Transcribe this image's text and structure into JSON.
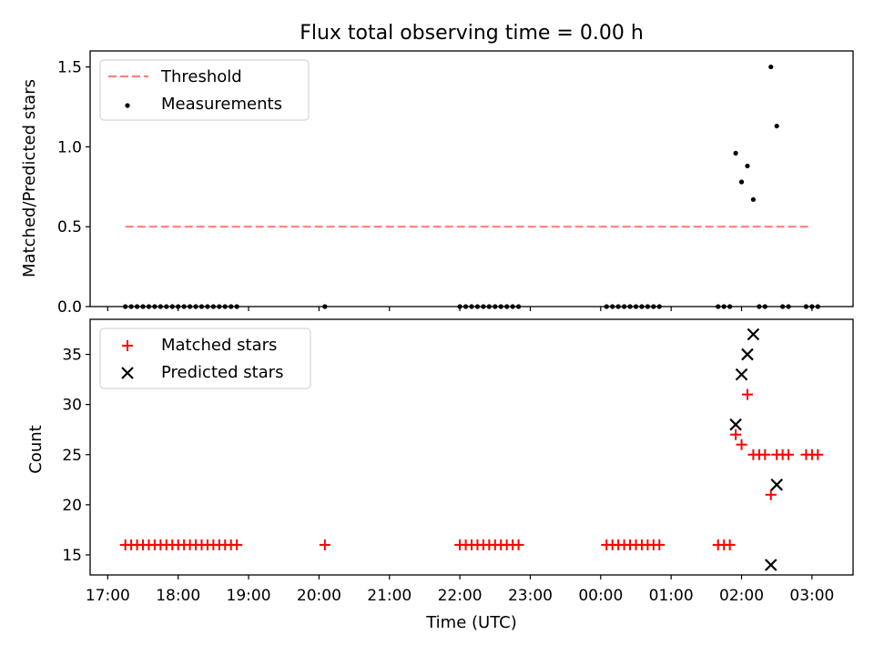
{
  "chart_data": [
    {
      "type": "scatter",
      "title": "Flux total observing time = 0.00 h",
      "xlabel": "",
      "ylabel": "Matched/Predicted stars",
      "ylim": [
        0,
        1.6
      ],
      "xlim": [
        "16:45",
        "03:35"
      ],
      "yticks": [
        0.0,
        0.5,
        1.0,
        1.5
      ],
      "yticklabels": [
        "0.0",
        "0.5",
        "1.0",
        "1.5"
      ],
      "grid": false,
      "legend_position": "top-left",
      "threshold": {
        "name": "Threshold",
        "value": 0.5,
        "x_range": [
          "17:15",
          "03:00"
        ],
        "color": "#ff7f7f",
        "style": "dashed"
      },
      "series": [
        {
          "name": "Measurements",
          "color": "#000000",
          "marker": "dot",
          "x": [
            "17:15",
            "17:20",
            "17:25",
            "17:30",
            "17:35",
            "17:40",
            "17:45",
            "17:50",
            "17:55",
            "18:00",
            "18:05",
            "18:10",
            "18:15",
            "18:20",
            "18:25",
            "18:30",
            "18:35",
            "18:40",
            "18:45",
            "18:50",
            "20:05",
            "22:00",
            "22:05",
            "22:10",
            "22:15",
            "22:20",
            "22:25",
            "22:30",
            "22:35",
            "22:40",
            "22:45",
            "22:50",
            "00:05",
            "00:10",
            "00:15",
            "00:20",
            "00:25",
            "00:30",
            "00:35",
            "00:40",
            "00:45",
            "00:50",
            "01:40",
            "01:45",
            "01:50",
            "01:55",
            "02:00",
            "02:05",
            "02:10",
            "02:15",
            "02:20",
            "02:25",
            "02:30",
            "02:35",
            "02:40",
            "02:55",
            "03:00",
            "03:05"
          ],
          "y": [
            0,
            0,
            0,
            0,
            0,
            0,
            0,
            0,
            0,
            0,
            0,
            0,
            0,
            0,
            0,
            0,
            0,
            0,
            0,
            0,
            0,
            0,
            0,
            0,
            0,
            0,
            0,
            0,
            0,
            0,
            0,
            0,
            0,
            0,
            0,
            0,
            0,
            0,
            0,
            0,
            0,
            0,
            0,
            0,
            0,
            0.96,
            0.78,
            0.88,
            0.67,
            0,
            0,
            1.5,
            1.13,
            0,
            0,
            0,
            0,
            0
          ]
        }
      ]
    },
    {
      "type": "scatter",
      "title": "",
      "xlabel": "Time (UTC)",
      "ylabel": "Count",
      "ylim": [
        13,
        38.5
      ],
      "xlim": [
        "16:45",
        "03:35"
      ],
      "yticks": [
        15,
        20,
        25,
        30,
        35
      ],
      "yticklabels": [
        "15",
        "20",
        "25",
        "30",
        "35"
      ],
      "xticklabels": [
        "17:00",
        "18:00",
        "19:00",
        "20:00",
        "21:00",
        "22:00",
        "23:00",
        "00:00",
        "01:00",
        "02:00",
        "03:00"
      ],
      "grid": false,
      "legend_position": "top-left",
      "series": [
        {
          "name": "Matched stars",
          "color": "#ff0000",
          "marker": "plus",
          "x": [
            "17:15",
            "17:20",
            "17:25",
            "17:30",
            "17:35",
            "17:40",
            "17:45",
            "17:50",
            "17:55",
            "18:00",
            "18:05",
            "18:10",
            "18:15",
            "18:20",
            "18:25",
            "18:30",
            "18:35",
            "18:40",
            "18:45",
            "18:50",
            "20:05",
            "22:00",
            "22:05",
            "22:10",
            "22:15",
            "22:20",
            "22:25",
            "22:30",
            "22:35",
            "22:40",
            "22:45",
            "22:50",
            "00:05",
            "00:10",
            "00:15",
            "00:20",
            "00:25",
            "00:30",
            "00:35",
            "00:40",
            "00:45",
            "00:50",
            "01:40",
            "01:45",
            "01:50",
            "01:55",
            "02:00",
            "02:05",
            "02:10",
            "02:15",
            "02:20",
            "02:25",
            "02:30",
            "02:35",
            "02:40",
            "02:55",
            "03:00",
            "03:05"
          ],
          "y": [
            16,
            16,
            16,
            16,
            16,
            16,
            16,
            16,
            16,
            16,
            16,
            16,
            16,
            16,
            16,
            16,
            16,
            16,
            16,
            16,
            16,
            16,
            16,
            16,
            16,
            16,
            16,
            16,
            16,
            16,
            16,
            16,
            16,
            16,
            16,
            16,
            16,
            16,
            16,
            16,
            16,
            16,
            16,
            16,
            16,
            27,
            26,
            31,
            25,
            25,
            25,
            21,
            25,
            25,
            25,
            25,
            25,
            25
          ]
        },
        {
          "name": "Predicted stars",
          "color": "#000000",
          "marker": "x",
          "x": [
            "01:55",
            "02:00",
            "02:05",
            "02:10",
            "02:25",
            "02:30"
          ],
          "y": [
            28,
            33,
            35,
            37,
            14,
            22
          ]
        }
      ]
    }
  ]
}
